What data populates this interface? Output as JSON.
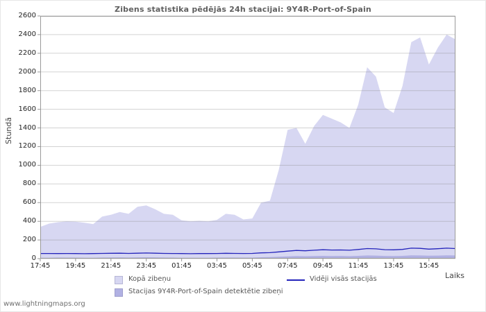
{
  "watermark": "www.lightningmaps.org",
  "chart_data": {
    "type": "area",
    "title": "Zibens statistika pēdējās 24h stacijai: 9Y4R-Port-of-Spain",
    "ylabel": "Stundā",
    "xlabel": "Laiks",
    "ylim": [
      0,
      2600
    ],
    "ytick_step": 200,
    "grid": "horizontal",
    "legend_position": "bottom",
    "x_ticks": [
      "17:45",
      "19:45",
      "21:45",
      "23:45",
      "01:45",
      "03:45",
      "05:45",
      "07:45",
      "09:45",
      "11:45",
      "13:45",
      "15:45"
    ],
    "x_tick_indices": [
      0,
      4,
      8,
      12,
      16,
      20,
      24,
      28,
      32,
      36,
      40,
      44
    ],
    "x": [
      "17:45",
      "18:15",
      "18:45",
      "19:15",
      "19:45",
      "20:15",
      "20:45",
      "21:15",
      "21:45",
      "22:15",
      "22:45",
      "23:15",
      "23:45",
      "00:15",
      "00:45",
      "01:15",
      "01:45",
      "02:15",
      "02:45",
      "03:15",
      "03:45",
      "04:15",
      "04:45",
      "05:15",
      "05:45",
      "06:15",
      "06:45",
      "07:15",
      "07:45",
      "08:15",
      "08:45",
      "09:15",
      "09:45",
      "10:15",
      "10:45",
      "11:15",
      "11:45",
      "12:15",
      "12:45",
      "13:15",
      "13:45",
      "14:15",
      "14:45",
      "15:15",
      "15:45",
      "16:15",
      "16:45",
      "17:15"
    ],
    "series": [
      {
        "name": "Kopā zibeņu",
        "type": "area",
        "color": "#d7d7f2",
        "values": [
          340,
          375,
          390,
          400,
          395,
          385,
          370,
          450,
          470,
          500,
          480,
          555,
          570,
          530,
          480,
          470,
          410,
          400,
          405,
          400,
          415,
          480,
          470,
          420,
          430,
          600,
          620,
          950,
          1380,
          1400,
          1230,
          1420,
          1540,
          1500,
          1460,
          1400,
          1650,
          2050,
          1950,
          1620,
          1560,
          1850,
          2320,
          2370,
          2080,
          2260,
          2400,
          2350
        ]
      },
      {
        "name": "Stacijas 9Y4R-Port-of-Spain detektētie zibeņi",
        "type": "area",
        "color": "#b1b1e3",
        "values": [
          10,
          10,
          12,
          11,
          11,
          10,
          10,
          12,
          13,
          14,
          12,
          14,
          15,
          14,
          12,
          11,
          10,
          10,
          10,
          10,
          11,
          12,
          12,
          11,
          11,
          15,
          16,
          20,
          24,
          28,
          26,
          28,
          30,
          28,
          29,
          27,
          30,
          34,
          33,
          29,
          28,
          30,
          35,
          34,
          31,
          33,
          35,
          34
        ]
      },
      {
        "name": "Vidēji visās stacijās",
        "type": "line",
        "color": "#2323bb",
        "values": [
          55,
          55,
          54,
          55,
          54,
          53,
          54,
          56,
          57,
          58,
          56,
          58,
          60,
          58,
          56,
          55,
          54,
          53,
          54,
          54,
          55,
          57,
          56,
          55,
          56,
          62,
          64,
          72,
          80,
          88,
          84,
          90,
          95,
          92,
          93,
          90,
          98,
          108,
          105,
          96,
          94,
          99,
          112,
          110,
          102,
          106,
          112,
          108
        ]
      }
    ]
  }
}
